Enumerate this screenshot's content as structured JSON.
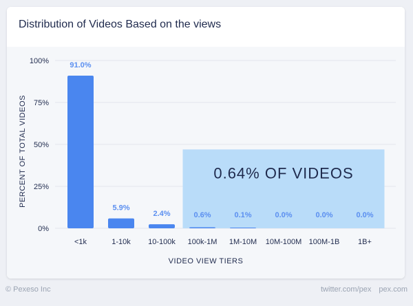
{
  "chart_data": {
    "type": "bar",
    "title": "Distribution of Videos Based on the views",
    "xlabel": "VIDEO VIEW TIERS",
    "ylabel": "PERCENT OF TOTAL VIDEOS",
    "ylim": [
      0,
      100
    ],
    "yticks": [
      0,
      25,
      50,
      75,
      100
    ],
    "ytick_labels": [
      "0%",
      "25%",
      "50%",
      "75%",
      "100%"
    ],
    "categories": [
      "<1k",
      "1-10k",
      "10-100k",
      "100k-1M",
      "1M-10M",
      "10M-100M",
      "100M-1B",
      "1B+"
    ],
    "values": [
      91.0,
      5.9,
      2.4,
      0.6,
      0.1,
      0.0,
      0.0,
      0.0
    ],
    "value_labels": [
      "91.0%",
      "5.9%",
      "2.4%",
      "0.6%",
      "0.1%",
      "0.0%",
      "0.0%",
      "0.0%"
    ],
    "grid": true,
    "annotation": {
      "text": "0.64% OF VIDEOS",
      "from_category": "100k-1M",
      "to_category": "1B+",
      "top_value": 47
    },
    "colors": {
      "bar": "#4a86ef",
      "label": "#5b8ff0",
      "highlight": "#b9dcf9",
      "highlight_text": "#1f2a4d",
      "axis_text": "#1f2a4d",
      "grid": "#e3e6ec"
    }
  },
  "footer": {
    "copyright": "© Pexeso Inc",
    "twitter": "twitter.com/pex",
    "site": "pex.com"
  }
}
